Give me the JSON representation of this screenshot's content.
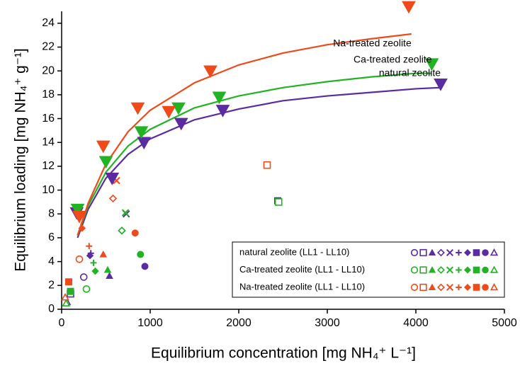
{
  "chart_data": {
    "type": "scatter",
    "xlabel": "Equilibrium concentration [mg NH₄⁺ L⁻¹]",
    "ylabel": "Equilibrium loading [mg NH₄⁺ g⁻¹]",
    "xlim": [
      0,
      5000
    ],
    "xticks": [
      0,
      1000,
      2000,
      3000,
      4000,
      5000
    ],
    "ylim": [
      0,
      25
    ],
    "yticks": [
      0,
      2,
      4,
      6,
      8,
      10,
      12,
      14,
      16,
      18,
      20,
      22,
      24
    ],
    "legend": "lower-right",
    "markers": [
      "circle-open",
      "square-open",
      "triangle",
      "diamond-open",
      "x",
      "plus",
      "diamond",
      "square",
      "circle",
      "triangle-open"
    ],
    "series": [
      {
        "name": "natural zeolite (LL1 - LL10)",
        "color": "#5a2ca0",
        "x": [
          250,
          100,
          540,
          680,
          730,
          330,
          320,
          2440,
          940,
          60
        ],
        "values": [
          2.7,
          1.3,
          2.8,
          6.6,
          8.0,
          4.7,
          4.5,
          9.1,
          3.6,
          0.6
        ]
      },
      {
        "name": "Ca-treated zeolite (LL1 - LL10)",
        "color": "#22b322",
        "x": [
          280,
          2450,
          520,
          680,
          720,
          360,
          380,
          100,
          890,
          50
        ],
        "values": [
          1.7,
          9.0,
          3.3,
          6.6,
          8.1,
          3.9,
          3.2,
          1.5,
          4.6,
          0.5
        ]
      },
      {
        "name": "Na-treated zeolite (LL1 - LL10)",
        "color": "#f04a1a",
        "x": [
          200,
          2320,
          470,
          580,
          620,
          310,
          230,
          80,
          830,
          40
        ],
        "values": [
          4.2,
          12.1,
          4.6,
          9.3,
          10.8,
          5.3,
          6.8,
          2.3,
          6.4,
          1.0
        ]
      }
    ],
    "isotherms": [
      {
        "label": "natural zeolite",
        "color": "#5a2ca0",
        "x": [
          170,
          570,
          930,
          1350,
          1820,
          4280
        ],
        "values": [
          8.1,
          11.0,
          14.0,
          15.6,
          16.7,
          18.9
        ],
        "fit_x": [
          180,
          300,
          500,
          750,
          1000,
          1500,
          2000,
          2500,
          3000,
          3500,
          4000,
          4280
        ],
        "fit_values": [
          6.0,
          8.4,
          11.0,
          13.0,
          14.3,
          15.9,
          16.8,
          17.5,
          17.9,
          18.2,
          18.5,
          18.6
        ]
      },
      {
        "label": "Ca-treated zeolite",
        "color": "#22b322",
        "x": [
          180,
          500,
          900,
          1320,
          1780,
          4180
        ],
        "values": [
          8.4,
          12.4,
          14.9,
          16.9,
          17.8,
          20.6
        ],
        "fit_x": [
          180,
          300,
          500,
          750,
          1000,
          1500,
          2000,
          2500,
          3000,
          3500,
          4000,
          4180
        ],
        "fit_values": [
          6.2,
          8.7,
          11.5,
          13.7,
          15.1,
          16.9,
          17.9,
          18.6,
          19.1,
          19.5,
          19.8,
          19.8
        ]
      },
      {
        "label": "Na-treated zeolite",
        "color": "#f04a1a",
        "x": [
          200,
          470,
          860,
          1210,
          1680,
          3920
        ],
        "values": [
          7.8,
          13.7,
          16.9,
          16.6,
          20.0,
          25.4
        ],
        "fit_x": [
          180,
          300,
          500,
          750,
          1000,
          1500,
          2000,
          2500,
          3000,
          3500,
          3950
        ],
        "fit_values": [
          6.2,
          8.9,
          12.2,
          14.9,
          16.7,
          19.0,
          20.5,
          21.5,
          22.2,
          22.7,
          23.1
        ]
      }
    ]
  }
}
